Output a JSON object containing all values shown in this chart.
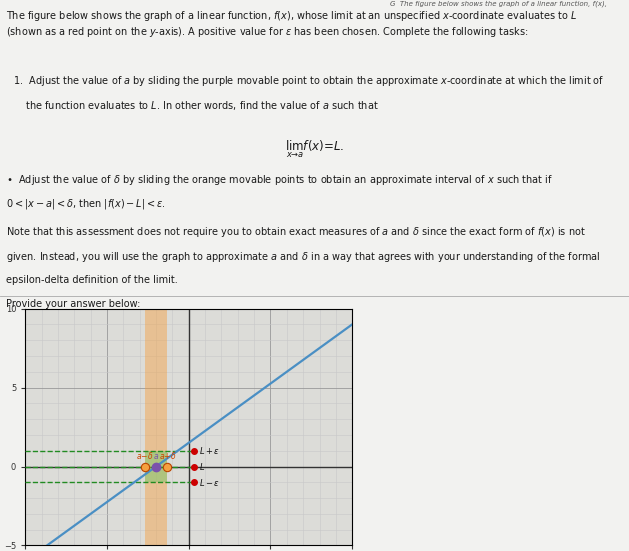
{
  "xlim": [
    -10,
    10
  ],
  "ylim": [
    -5,
    10
  ],
  "xticks": [
    -10,
    -5,
    0,
    5,
    10
  ],
  "yticks": [
    -5,
    0,
    5,
    10
  ],
  "line_slope": 0.75,
  "line_intercept": 1.5,
  "a_val": -2.0,
  "delta": 0.7,
  "L": 0.0,
  "epsilon": 1.0,
  "line_color": "#4a8fc4",
  "orange_fill": "#f5a040",
  "green_fill": "#80c870",
  "purple_point_color": "#7b52ab",
  "red_point_color": "#cc0000",
  "dashed_color": "#228B22",
  "bg_color": "#e8e8e6",
  "text_bg_color": "#f2f2f0",
  "grid_color": "#c8c8c8",
  "axis_color": "#333333",
  "font_size_text": 7.0,
  "graph_bg": "#dcdcd8",
  "header_text": "G  The figure below shows the graph of a linear function, f(x),",
  "answer_prompt": "Provide your answer below:"
}
